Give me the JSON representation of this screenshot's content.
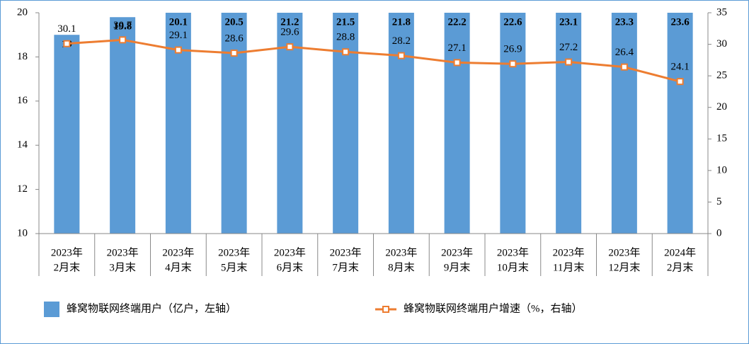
{
  "chart_data": {
    "type": "bar-line",
    "categories": [
      [
        "2023年",
        "2月末"
      ],
      [
        "2023年",
        "3月末"
      ],
      [
        "2023年",
        "4月末"
      ],
      [
        "2023年",
        "5月末"
      ],
      [
        "2023年",
        "6月末"
      ],
      [
        "2023年",
        "7月末"
      ],
      [
        "2023年",
        "8月末"
      ],
      [
        "2023年",
        "9月末"
      ],
      [
        "2023年",
        "10月末"
      ],
      [
        "2023年",
        "11月末"
      ],
      [
        "2023年",
        "12月末"
      ],
      [
        "2024年",
        "2月末"
      ]
    ],
    "series": [
      {
        "name": "蜂窝物联网终端用户（亿户，左轴）",
        "type": "bar",
        "color": "#5b9bd5",
        "values": [
          19.0,
          19.8,
          20.1,
          20.5,
          21.2,
          21.5,
          21.8,
          22.2,
          22.6,
          23.1,
          23.3,
          23.6
        ]
      },
      {
        "name": "蜂窝物联网终端用户增速（%，右轴）",
        "type": "line",
        "axis": "y2",
        "color": "#ed7d31",
        "values": [
          30.1,
          30.7,
          29.1,
          28.6,
          29.6,
          28.8,
          28.2,
          27.1,
          26.9,
          27.2,
          26.4,
          24.1
        ]
      }
    ],
    "ylim": [
      10,
      20
    ],
    "yticks": [
      10,
      12,
      14,
      16,
      18,
      20
    ],
    "y2lim": [
      0,
      35
    ],
    "y2ticks": [
      0,
      5,
      10,
      15,
      20,
      25,
      30,
      35
    ]
  }
}
